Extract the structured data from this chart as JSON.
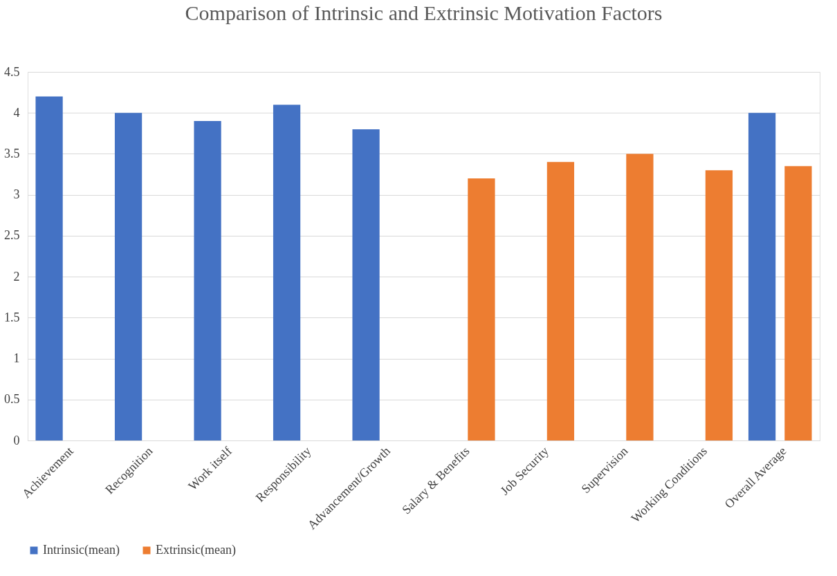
{
  "chart_data": {
    "type": "bar",
    "title": "Comparison of Intrinsic and Extrinsic Motivation Factors",
    "categories": [
      "Achievement",
      "Recognition",
      "Work itself",
      "Responsibility",
      "Advancement/Growth",
      "Salary & Benefits",
      "Job Security",
      "Supervision",
      "Working Conditions",
      "Overall Average"
    ],
    "series": [
      {
        "name": "Intrinsic(mean)",
        "color": "#4472c4",
        "values": [
          4.2,
          4.0,
          3.9,
          4.1,
          3.8,
          null,
          null,
          null,
          null,
          4.0
        ]
      },
      {
        "name": "Extrinsic(mean)",
        "color": "#ed7d31",
        "values": [
          null,
          null,
          null,
          null,
          null,
          3.2,
          3.4,
          3.5,
          3.3,
          3.35
        ]
      }
    ],
    "ylim": [
      0,
      4.5
    ],
    "yticks": [
      0,
      0.5,
      1,
      1.5,
      2,
      2.5,
      3,
      3.5,
      4,
      4.5
    ],
    "grid": "y",
    "legend": "bottom"
  }
}
